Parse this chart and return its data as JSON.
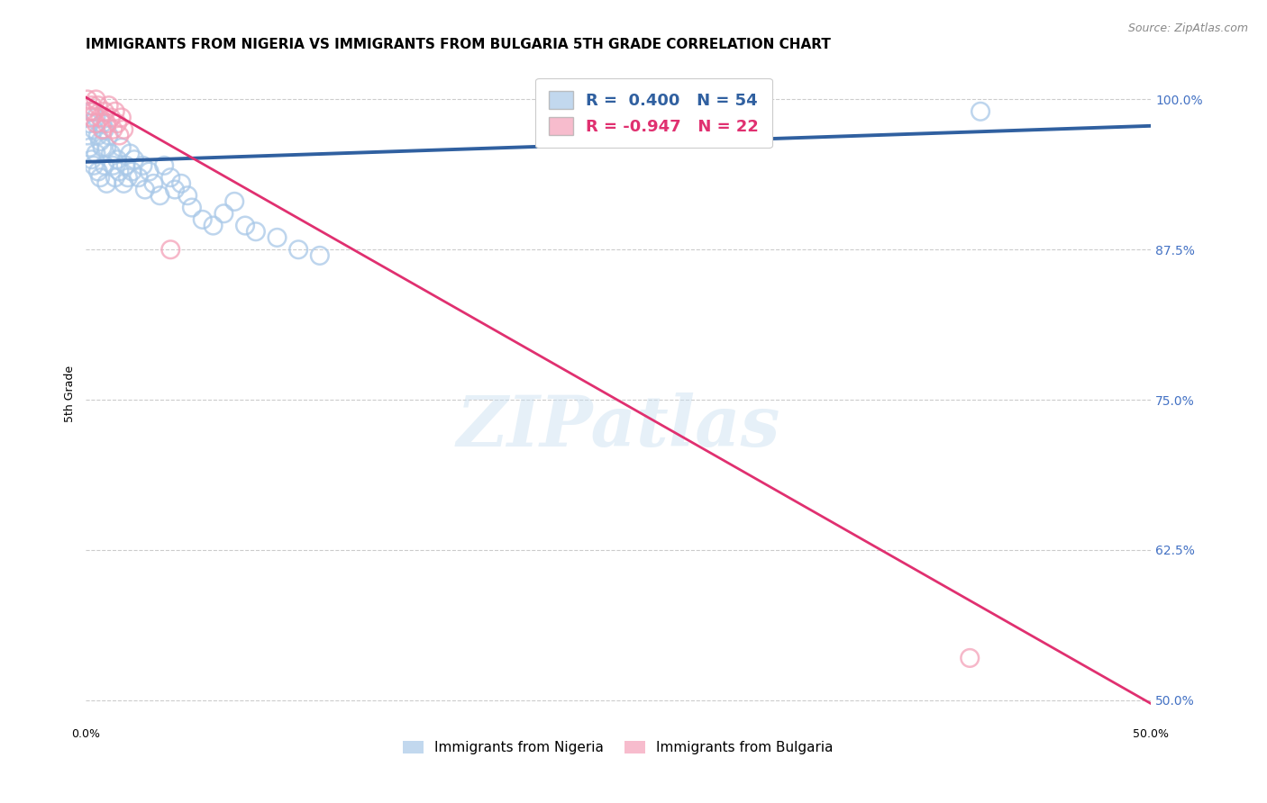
{
  "title": "IMMIGRANTS FROM NIGERIA VS IMMIGRANTS FROM BULGARIA 5TH GRADE CORRELATION CHART",
  "source": "Source: ZipAtlas.com",
  "ylabel": "5th Grade",
  "xlim": [
    0.0,
    0.5
  ],
  "ylim": [
    0.48,
    1.03
  ],
  "xticks": [
    0.0,
    0.1,
    0.2,
    0.3,
    0.4,
    0.5
  ],
  "xticklabels": [
    "0.0%",
    "",
    "",
    "",
    "",
    "50.0%"
  ],
  "yticks": [
    0.5,
    0.625,
    0.75,
    0.875,
    1.0
  ],
  "yticklabels": [
    "50.0%",
    "62.5%",
    "75.0%",
    "87.5%",
    "100.0%"
  ],
  "nigeria_R": 0.4,
  "nigeria_N": 54,
  "bulgaria_R": -0.947,
  "bulgaria_N": 22,
  "nigeria_color": "#a8c8e8",
  "bulgaria_color": "#f4a0b8",
  "nigeria_line_color": "#3060a0",
  "bulgaria_line_color": "#e03070",
  "legend_nigeria": "Immigrants from Nigeria",
  "legend_bulgaria": "Immigrants from Bulgaria",
  "watermark": "ZIPatlas",
  "nigeria_scatter_x": [
    0.001,
    0.002,
    0.002,
    0.003,
    0.003,
    0.004,
    0.004,
    0.005,
    0.005,
    0.006,
    0.006,
    0.007,
    0.007,
    0.008,
    0.008,
    0.009,
    0.009,
    0.01,
    0.01,
    0.011,
    0.012,
    0.013,
    0.014,
    0.015,
    0.016,
    0.017,
    0.018,
    0.019,
    0.02,
    0.021,
    0.022,
    0.023,
    0.025,
    0.027,
    0.028,
    0.03,
    0.032,
    0.035,
    0.037,
    0.04,
    0.042,
    0.045,
    0.048,
    0.05,
    0.055,
    0.06,
    0.065,
    0.07,
    0.075,
    0.08,
    0.09,
    0.1,
    0.11,
    0.42
  ],
  "nigeria_scatter_y": [
    0.97,
    0.98,
    0.96,
    0.99,
    0.95,
    0.975,
    0.945,
    0.985,
    0.955,
    0.97,
    0.94,
    0.965,
    0.935,
    0.98,
    0.96,
    0.975,
    0.945,
    0.96,
    0.93,
    0.97,
    0.955,
    0.945,
    0.935,
    0.95,
    0.94,
    0.96,
    0.93,
    0.945,
    0.935,
    0.955,
    0.94,
    0.95,
    0.935,
    0.945,
    0.925,
    0.94,
    0.93,
    0.92,
    0.945,
    0.935,
    0.925,
    0.93,
    0.92,
    0.91,
    0.9,
    0.895,
    0.905,
    0.915,
    0.895,
    0.89,
    0.885,
    0.875,
    0.87,
    0.99
  ],
  "bulgaria_scatter_x": [
    0.001,
    0.002,
    0.003,
    0.003,
    0.004,
    0.005,
    0.005,
    0.006,
    0.007,
    0.008,
    0.009,
    0.01,
    0.011,
    0.012,
    0.013,
    0.014,
    0.015,
    0.016,
    0.017,
    0.018,
    0.04,
    0.415
  ],
  "bulgaria_scatter_y": [
    1.0,
    0.99,
    0.995,
    0.985,
    0.99,
    0.98,
    1.0,
    0.995,
    0.985,
    0.975,
    0.99,
    0.98,
    0.995,
    0.985,
    0.975,
    0.99,
    0.98,
    0.97,
    0.985,
    0.975,
    0.875,
    0.535
  ],
  "nigeria_trendline_x": [
    0.0,
    0.5
  ],
  "nigeria_trendline_y": [
    0.948,
    0.978
  ],
  "bulgaria_trendline_x": [
    0.0,
    0.5
  ],
  "bulgaria_trendline_y": [
    1.002,
    0.497
  ],
  "bg_color": "#ffffff",
  "grid_color": "#cccccc",
  "title_fontsize": 11,
  "axis_label_fontsize": 9,
  "tick_fontsize": 9,
  "right_ytick_color": "#4472c4",
  "right_ytick_fontsize": 10
}
